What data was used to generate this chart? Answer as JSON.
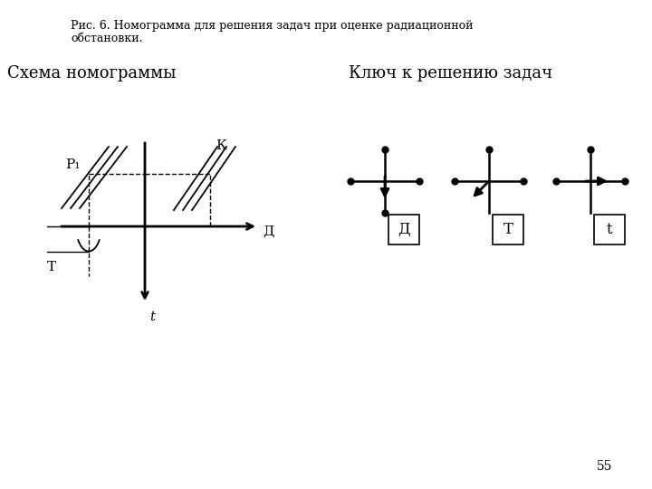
{
  "title_line1": "Рис. 6. Номограмма для решения задач при оценке радиационной",
  "title_line2": "обстановки.",
  "left_heading": "Схема номограммы",
  "right_heading": "Ключ к решению задач",
  "page_number": "55",
  "bg_color": "#ffffff",
  "line_color": "#000000"
}
